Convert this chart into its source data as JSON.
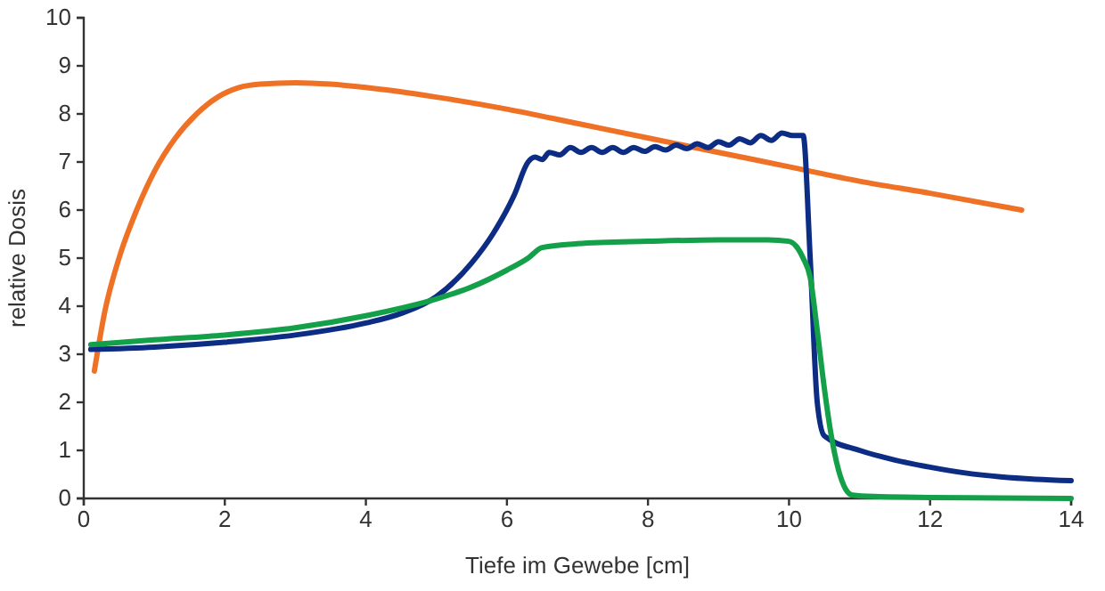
{
  "chart_data": {
    "type": "line",
    "xlabel": "Tiefe im Gewebe [cm]",
    "ylabel": "relative Dosis",
    "xlim": [
      0,
      14
    ],
    "ylim": [
      0,
      10
    ],
    "xticks": [
      0,
      2,
      4,
      6,
      8,
      10,
      12,
      14
    ],
    "yticks": [
      0,
      1,
      2,
      3,
      4,
      5,
      6,
      7,
      8,
      9,
      10
    ],
    "line_style": "solid",
    "series": [
      {
        "color": "#ef7125",
        "x": [
          0.15,
          0.3,
          0.5,
          0.75,
          1,
          1.3,
          1.6,
          1.9,
          2.2,
          2.5,
          3,
          3.5,
          4,
          5,
          6,
          7,
          8,
          9,
          10,
          11,
          12,
          13.3
        ],
        "values": [
          2.65,
          3.9,
          5.0,
          6.0,
          6.8,
          7.5,
          8.0,
          8.35,
          8.55,
          8.62,
          8.65,
          8.62,
          8.55,
          8.35,
          8.1,
          7.8,
          7.5,
          7.2,
          6.9,
          6.6,
          6.35,
          6.0
        ]
      },
      {
        "color": "#0c2d83",
        "x": [
          0.1,
          1,
          2,
          3,
          4,
          4.5,
          5,
          5.5,
          5.8,
          6.1,
          6.3,
          6.4,
          6.5,
          6.6,
          6.75,
          6.9,
          7.05,
          7.2,
          7.35,
          7.5,
          7.65,
          7.8,
          7.95,
          8.1,
          8.25,
          8.4,
          8.55,
          8.7,
          8.85,
          9.0,
          9.15,
          9.3,
          9.45,
          9.6,
          9.75,
          9.9,
          10.05,
          10.2,
          10.3,
          10.4,
          10.5,
          11,
          11.5,
          12,
          12.5,
          13,
          13.5,
          14
        ],
        "values": [
          3.1,
          3.15,
          3.25,
          3.4,
          3.65,
          3.85,
          4.2,
          4.9,
          5.5,
          6.3,
          7.0,
          7.1,
          7.05,
          7.2,
          7.15,
          7.3,
          7.2,
          7.3,
          7.2,
          7.3,
          7.2,
          7.3,
          7.22,
          7.32,
          7.25,
          7.35,
          7.28,
          7.38,
          7.3,
          7.42,
          7.35,
          7.48,
          7.4,
          7.55,
          7.45,
          7.6,
          7.55,
          7.55,
          5.0,
          2.0,
          1.3,
          1.0,
          0.8,
          0.65,
          0.53,
          0.45,
          0.4,
          0.37
        ]
      },
      {
        "color": "#13a049",
        "x": [
          0.1,
          1,
          2,
          3,
          4,
          5,
          5.5,
          6,
          6.3,
          6.5,
          7,
          8,
          9,
          9.7,
          10,
          10.1,
          10.2,
          10.3,
          10.4,
          10.5,
          10.6,
          10.7,
          10.8,
          10.9,
          11.2,
          12,
          13,
          14
        ],
        "values": [
          3.2,
          3.3,
          3.4,
          3.55,
          3.8,
          4.15,
          4.4,
          4.75,
          5.0,
          5.22,
          5.3,
          5.35,
          5.38,
          5.38,
          5.35,
          5.25,
          5.0,
          4.6,
          3.5,
          2.3,
          1.3,
          0.6,
          0.2,
          0.07,
          0.04,
          0.02,
          0.01,
          0.0
        ]
      }
    ]
  }
}
